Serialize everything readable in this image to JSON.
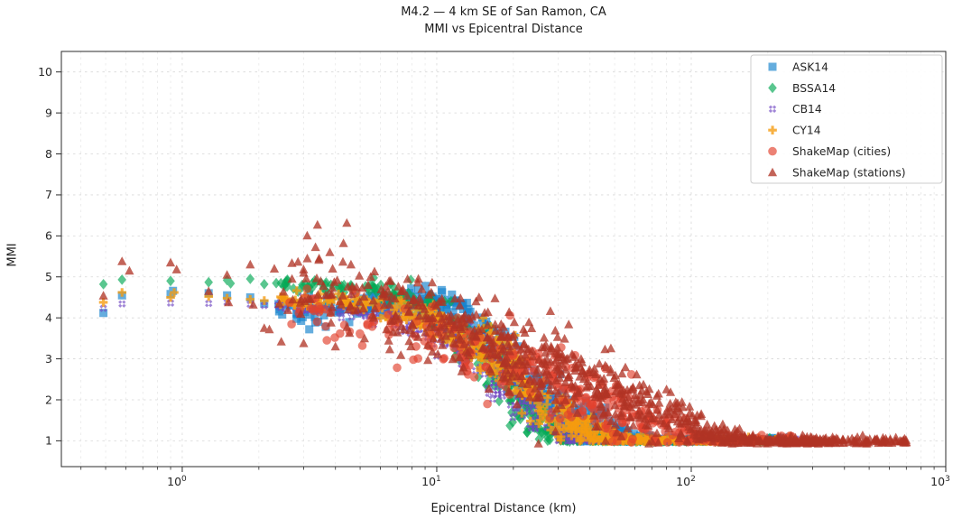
{
  "chart_data": {
    "type": "scatter",
    "title": "M4.2 — 4 km SE of San Ramon, CA",
    "subtitle": "MMI vs Epicentral Distance",
    "xlabel": "Epicentral Distance (km)",
    "ylabel": "MMI",
    "x_scale": "log",
    "xlim": [
      0.335,
      1000
    ],
    "ylim": [
      0.37,
      10.5
    ],
    "y_ticks": [
      1,
      2,
      3,
      4,
      5,
      6,
      7,
      8,
      9,
      10
    ],
    "x_ticks": [
      {
        "value": 1,
        "base": "10",
        "exp": "0"
      },
      {
        "value": 10,
        "base": "10",
        "exp": "1"
      },
      {
        "value": 100,
        "base": "10",
        "exp": "2"
      },
      {
        "value": 1000,
        "base": "10",
        "exp": "3"
      }
    ],
    "grid": {
      "major": true,
      "minor": true,
      "style": "dashed",
      "major_color": "#d8d8d8",
      "minor_color": "#e4e4e4"
    },
    "legend": {
      "position": "upper right"
    },
    "seed": 1337,
    "series": [
      {
        "name": "ASK14",
        "marker": "square",
        "color": "#1683cd",
        "opacity": 0.66,
        "n": 520,
        "x_dist": {
          "range": [
            0.3617,
            2.415
          ],
          "components": [
            {
              "type": "loguniform",
              "lo": 0.3617,
              "hi": 2.415,
              "w": 0.38
            },
            {
              "type": "lognormal",
              "mu": 1.45,
              "sigma": 0.38,
              "w": 0.62
            }
          ]
        },
        "trend_r": [
          0.45,
          1.0,
          1.6,
          2.2,
          3.0,
          4.5,
          6.5,
          9.0,
          12,
          16,
          22,
          30,
          40,
          55,
          75,
          260
        ],
        "trend_mmi": [
          4.15,
          4.5,
          4.42,
          4.25,
          4.12,
          4.2,
          4.38,
          4.45,
          4.2,
          3.5,
          2.5,
          1.7,
          1.45,
          1.12,
          1.0,
          1.0
        ],
        "sigma_mmi": [
          0.1,
          0.12,
          0.12,
          0.12,
          0.15,
          0.18,
          0.15,
          0.15,
          0.2,
          0.3,
          0.35,
          0.3,
          0.22,
          0.1,
          0.04,
          0.04
        ],
        "clip": [
          1.0,
          4.8
        ],
        "points_explicit": [
          [
            0.49,
            4.12
          ],
          [
            0.58,
            4.55
          ],
          [
            0.9,
            4.58
          ],
          [
            0.92,
            4.66
          ],
          [
            1.27,
            4.6
          ],
          [
            1.5,
            4.55
          ],
          [
            1.85,
            4.5
          ],
          [
            2.1,
            4.35
          ]
        ]
      },
      {
        "name": "BSSA14",
        "marker": "diamond",
        "color": "#04a955",
        "opacity": 0.66,
        "n": 520,
        "x_dist": {
          "range": [
            0.3617,
            2.415
          ],
          "components": [
            {
              "type": "loguniform",
              "lo": 0.3617,
              "hi": 2.415,
              "w": 0.38
            },
            {
              "type": "lognormal",
              "mu": 1.45,
              "sigma": 0.38,
              "w": 0.62
            }
          ]
        },
        "trend_r": [
          0.45,
          1.0,
          2.0,
          3.0,
          5.0,
          7.0,
          9.0,
          12,
          16,
          20,
          25,
          32,
          45,
          260
        ],
        "trend_mmi": [
          4.85,
          4.9,
          4.87,
          4.8,
          4.72,
          4.55,
          4.3,
          3.6,
          2.8,
          2.2,
          1.55,
          1.05,
          1.0,
          1.0
        ],
        "sigma_mmi": [
          0.05,
          0.05,
          0.06,
          0.07,
          0.1,
          0.15,
          0.2,
          0.3,
          0.35,
          0.35,
          0.3,
          0.12,
          0.04,
          0.04
        ],
        "clip": [
          1.0,
          5.0
        ],
        "points_explicit": [
          [
            0.49,
            4.82
          ],
          [
            0.58,
            4.93
          ],
          [
            0.9,
            4.9
          ],
          [
            1.27,
            4.87
          ],
          [
            1.5,
            4.92
          ],
          [
            1.55,
            4.84
          ],
          [
            1.85,
            4.95
          ],
          [
            2.1,
            4.82
          ]
        ]
      },
      {
        "name": "CB14",
        "marker": "x",
        "color": "#7048c2",
        "opacity": 0.66,
        "n": 500,
        "x_dist": {
          "range": [
            0.3617,
            2.415
          ],
          "components": [
            {
              "type": "loguniform",
              "lo": 0.3617,
              "hi": 2.415,
              "w": 0.38
            },
            {
              "type": "lognormal",
              "mu": 1.45,
              "sigma": 0.38,
              "w": 0.62
            }
          ]
        },
        "trend_r": [
          0.45,
          1.0,
          2.0,
          3.5,
          6.0,
          9.0,
          13,
          18,
          25,
          32,
          42,
          260
        ],
        "trend_mmi": [
          4.25,
          4.4,
          4.33,
          4.25,
          4.1,
          3.85,
          3.35,
          2.6,
          1.7,
          1.15,
          1.0,
          1.0
        ],
        "sigma_mmi": [
          0.07,
          0.08,
          0.08,
          0.1,
          0.12,
          0.18,
          0.28,
          0.35,
          0.3,
          0.15,
          0.03,
          0.03
        ],
        "clip": [
          1.0,
          4.8
        ],
        "points_explicit": [
          [
            0.49,
            4.23
          ],
          [
            0.58,
            4.34
          ],
          [
            0.9,
            4.36
          ],
          [
            1.27,
            4.35
          ],
          [
            1.5,
            4.38
          ],
          [
            1.85,
            4.33
          ],
          [
            2.1,
            4.3
          ]
        ]
      },
      {
        "name": "CY14",
        "marker": "plus",
        "color": "#f59b0e",
        "opacity": 0.78,
        "n": 560,
        "x_dist": {
          "range": [
            0.3617,
            2.415
          ],
          "components": [
            {
              "type": "loguniform",
              "lo": 0.3617,
              "hi": 2.415,
              "w": 0.38
            },
            {
              "type": "lognormal",
              "mu": 1.45,
              "sigma": 0.38,
              "w": 0.62
            }
          ]
        },
        "trend_r": [
          0.45,
          1.0,
          2.0,
          3.5,
          6.0,
          9.0,
          13,
          18,
          25,
          33,
          45,
          60,
          260
        ],
        "trend_mmi": [
          4.42,
          4.6,
          4.5,
          4.42,
          4.3,
          4.05,
          3.6,
          2.9,
          2.05,
          1.5,
          1.1,
          1.0,
          1.0
        ],
        "sigma_mmi": [
          0.08,
          0.09,
          0.1,
          0.12,
          0.15,
          0.22,
          0.3,
          0.4,
          0.4,
          0.3,
          0.15,
          0.05,
          0.05
        ],
        "clip": [
          1.0,
          4.8
        ],
        "points_explicit": [
          [
            0.49,
            4.38
          ],
          [
            0.58,
            4.62
          ],
          [
            0.9,
            4.5
          ],
          [
            0.93,
            4.62
          ],
          [
            1.27,
            4.52
          ],
          [
            1.5,
            4.48
          ],
          [
            1.85,
            4.45
          ],
          [
            2.1,
            4.42
          ]
        ]
      },
      {
        "name": "ShakeMap (cities)",
        "marker": "circle",
        "color": "#e2422d",
        "opacity": 0.66,
        "n": 340,
        "x_dist": {
          "range": [
            0.415,
            2.477
          ],
          "components": [
            {
              "type": "lognormal",
              "mu": 1.54,
              "sigma": 0.4,
              "w": 0.55
            },
            {
              "type": "loguniform",
              "lo": 0.415,
              "hi": 2.477,
              "w": 0.45
            }
          ]
        },
        "trend_r": [
          2.6,
          5.0,
          8.0,
          12,
          20,
          30,
          50,
          80,
          120,
          300
        ],
        "trend_mmi": [
          4.2,
          4.0,
          3.7,
          3.35,
          2.85,
          2.35,
          1.8,
          1.35,
          1.02,
          1.0
        ],
        "sigma_mmi": [
          0.3,
          0.32,
          0.35,
          0.4,
          0.42,
          0.45,
          0.4,
          0.3,
          0.1,
          0.04
        ],
        "clip": [
          0.98,
          4.8
        ],
        "points_explicit": [
          [
            3.7,
            3.45
          ],
          [
            8.3,
            3.3
          ],
          [
            10.5,
            3.85
          ],
          [
            13,
            2.95
          ],
          [
            2.9,
            4.2
          ]
        ]
      },
      {
        "name": "ShakeMap (stations)",
        "marker": "triangle-up",
        "color": "#b03325",
        "opacity": 0.76,
        "n": 820,
        "x_dist": {
          "range": [
            0.3617,
            2.845
          ],
          "components": [
            {
              "type": "lognormal",
              "mu": 1.48,
              "sigma": 0.42,
              "w": 0.5
            },
            {
              "type": "loguniform",
              "lo": 0.3617,
              "hi": 2.623,
              "w": 0.27
            },
            {
              "type": "loguniform",
              "lo": 1.978,
              "hi": 2.845,
              "w": 0.23
            }
          ]
        },
        "trend_r": [
          0.45,
          1.0,
          2.0,
          3.5,
          5.0,
          8.0,
          12,
          20,
          35,
          60,
          90,
          130,
          180,
          700
        ],
        "trend_mmi": [
          4.55,
          4.75,
          4.55,
          4.7,
          4.45,
          4.15,
          3.7,
          3.1,
          2.55,
          1.95,
          1.5,
          1.1,
          1.0,
          0.98
        ],
        "sigma_mmi": [
          0.25,
          0.3,
          0.42,
          0.5,
          0.5,
          0.52,
          0.55,
          0.55,
          0.5,
          0.42,
          0.3,
          0.15,
          0.06,
          0.05
        ],
        "clip": [
          0.95,
          6.35
        ],
        "points_explicit": [
          [
            0.49,
            4.54
          ],
          [
            0.58,
            5.38
          ],
          [
            0.62,
            5.15
          ],
          [
            0.9,
            5.35
          ],
          [
            0.95,
            5.18
          ],
          [
            1.27,
            4.65
          ],
          [
            1.5,
            5.05
          ],
          [
            1.52,
            4.38
          ],
          [
            1.85,
            5.3
          ],
          [
            1.9,
            4.32
          ],
          [
            2.1,
            3.75
          ],
          [
            2.2,
            3.72
          ],
          [
            2.45,
            3.42
          ],
          [
            3.0,
            3.38
          ],
          [
            2.3,
            5.2
          ],
          [
            2.7,
            4.95
          ],
          [
            3.0,
            5.1
          ],
          [
            3.1,
            5.45
          ],
          [
            3.45,
            5.45
          ],
          [
            3.4,
            6.27
          ],
          [
            3.8,
            5.6
          ],
          [
            3.9,
            5.2
          ],
          [
            4.3,
            5.82
          ],
          [
            4.6,
            5.3
          ],
          [
            5.5,
            5.0
          ],
          [
            6.5,
            4.9
          ],
          [
            4.0,
            3.3
          ],
          [
            5.2,
            3.5
          ],
          [
            660,
            1.0
          ],
          [
            700,
            0.97
          ]
        ]
      }
    ]
  }
}
